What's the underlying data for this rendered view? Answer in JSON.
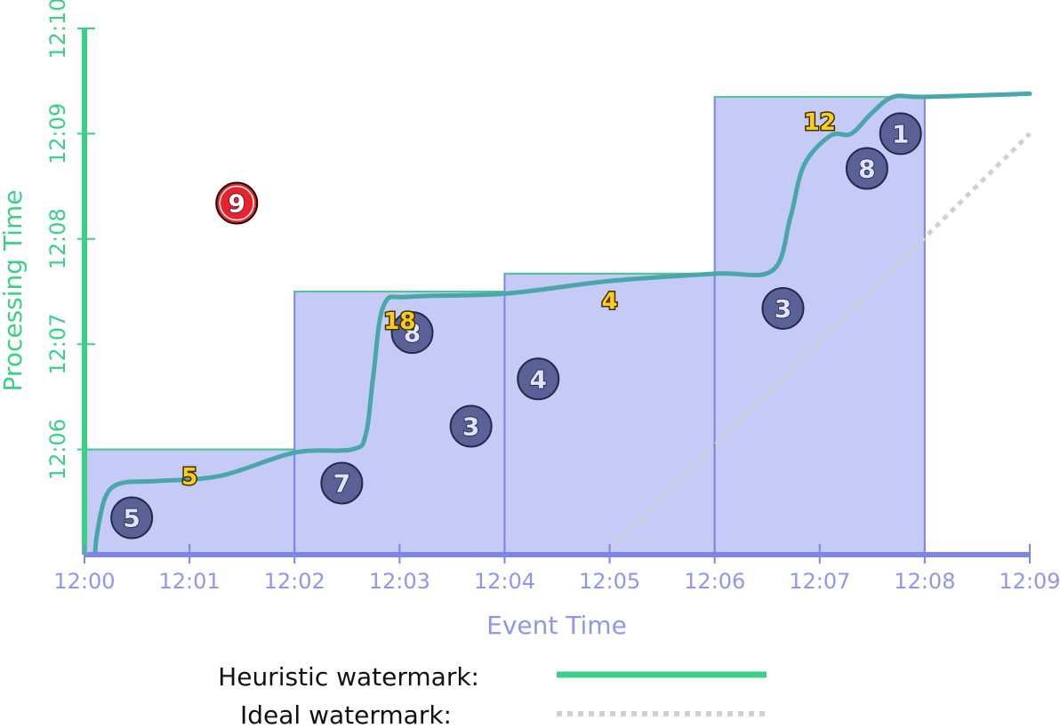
{
  "chart_data": {
    "type": "scatter",
    "xlabel": "Event Time",
    "ylabel": "Processing Time",
    "x_ticks": [
      "12:00",
      "12:01",
      "12:02",
      "12:03",
      "12:04",
      "12:05",
      "12:06",
      "12:07",
      "12:08",
      "12:09"
    ],
    "y_ticks": [
      "12:06",
      "12:07",
      "12:08",
      "12:09",
      "12:10"
    ],
    "x_range_minutes": [
      0,
      9
    ],
    "y_range_minutes": [
      5,
      10
    ],
    "colors": {
      "x_axis": "#7d85e8",
      "y_axis": "#3ccf87",
      "window_fill": "#c5cbf6",
      "window_edge": "#7d85e8",
      "window_top": "#4fc98f",
      "heuristic_line": "#3ccf87",
      "heuristic_curve": "#4aa7a9",
      "ideal_line": "#cfd0d6",
      "datum_fill": "#5a6196",
      "late_datum_fill": "#e8232b",
      "sum_text": "#ffcc1e"
    },
    "windows": [
      {
        "start": 0,
        "end": 2,
        "fire_time": 6.0
      },
      {
        "start": 2,
        "end": 4,
        "fire_time": 7.5
      },
      {
        "start": 4,
        "end": 6,
        "fire_time": 7.67
      },
      {
        "start": 6,
        "end": 8,
        "fire_time": 9.35
      }
    ],
    "data_points": [
      {
        "x": 0.45,
        "y": 5.35,
        "value": "5",
        "late": false
      },
      {
        "x": 2.45,
        "y": 5.68,
        "value": "7",
        "late": false
      },
      {
        "x": 3.68,
        "y": 6.22,
        "value": "3",
        "late": false
      },
      {
        "x": 3.12,
        "y": 7.11,
        "value": "8",
        "late": false
      },
      {
        "x": 4.32,
        "y": 6.67,
        "value": "4",
        "late": false
      },
      {
        "x": 6.65,
        "y": 7.34,
        "value": "3",
        "late": false
      },
      {
        "x": 7.45,
        "y": 8.67,
        "value": "8",
        "late": false
      },
      {
        "x": 7.77,
        "y": 9.0,
        "value": "1",
        "late": false
      },
      {
        "x": 1.45,
        "y": 8.34,
        "value": "9",
        "late": true
      }
    ],
    "window_results": [
      {
        "x": 1.0,
        "y": 5.75,
        "value": "5"
      },
      {
        "x": 3.0,
        "y": 7.23,
        "value": "18"
      },
      {
        "x": 5.0,
        "y": 7.42,
        "value": "4"
      },
      {
        "x": 7.0,
        "y": 9.12,
        "value": "12"
      }
    ],
    "heuristic_watermark": [
      [
        0.1,
        5.0
      ],
      [
        0.12,
        5.2
      ],
      [
        0.2,
        5.55
      ],
      [
        0.35,
        5.68
      ],
      [
        0.7,
        5.7
      ],
      [
        1.3,
        5.75
      ],
      [
        2.0,
        5.97
      ],
      [
        2.55,
        6.0
      ],
      [
        2.68,
        6.15
      ],
      [
        2.75,
        6.7
      ],
      [
        2.85,
        7.37
      ],
      [
        3.1,
        7.45
      ],
      [
        4.0,
        7.48
      ],
      [
        5.0,
        7.6
      ],
      [
        6.0,
        7.67
      ],
      [
        6.55,
        7.7
      ],
      [
        6.72,
        8.2
      ],
      [
        6.85,
        8.7
      ],
      [
        7.1,
        8.98
      ],
      [
        7.3,
        9.0
      ],
      [
        7.5,
        9.2
      ],
      [
        7.7,
        9.35
      ],
      [
        8.0,
        9.35
      ],
      [
        9.0,
        9.38
      ]
    ],
    "ideal_watermark": [
      [
        5.0,
        5.05
      ],
      [
        9.0,
        9.0
      ]
    ],
    "legend": {
      "heuristic_label": "Heuristic watermark:",
      "ideal_label": "Ideal watermark:"
    }
  }
}
